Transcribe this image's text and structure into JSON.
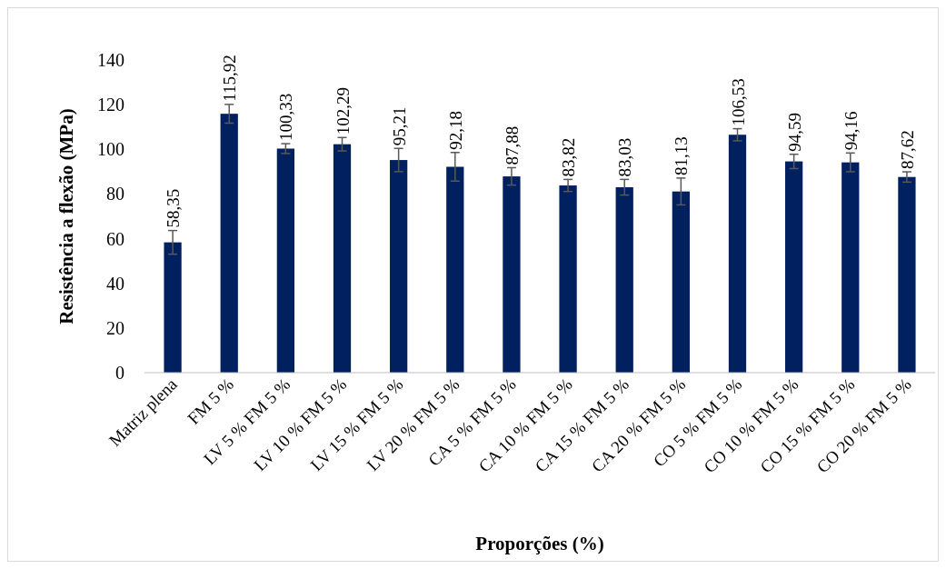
{
  "chart_data": {
    "type": "bar",
    "xlabel": "Proporções (%)",
    "ylabel": "Resistência a flexão (MPa)",
    "categories": [
      "Matriz plena",
      "FM 5 %",
      "LV 5 % FM 5 %",
      "LV 10 % FM 5 %",
      "LV 15 % FM 5 %",
      "LV 20 % FM 5 %",
      "CA 5 % FM 5 %",
      "CA 10 % FM 5 %",
      "CA 15 % FM 5 %",
      "CA 20 % FM 5 %",
      "CO 5 % FM 5 %",
      "CO 10 % FM 5 %",
      "CO 15 % FM 5 %",
      "CO 20 % FM 5 %"
    ],
    "values": [
      58.35,
      115.92,
      100.33,
      102.29,
      95.21,
      92.18,
      87.88,
      83.82,
      83.03,
      81.13,
      106.53,
      94.59,
      94.16,
      87.62
    ],
    "errors": [
      5.3,
      4.2,
      2.2,
      3.0,
      5.2,
      6.4,
      3.9,
      2.7,
      3.5,
      6.0,
      2.7,
      3.2,
      4.2,
      2.3
    ],
    "value_labels": [
      "58,35",
      "115,92",
      "100,33",
      "102,29",
      "95,21",
      "92,18",
      "87,88",
      "83,82",
      "83,03",
      "81,13",
      "106,53",
      "94,59",
      "94,16",
      "87,62"
    ],
    "color": "#002060",
    "ylim": [
      0,
      140
    ],
    "yticks": [
      0,
      20,
      40,
      60,
      80,
      100,
      120,
      140
    ],
    "grid": false
  }
}
